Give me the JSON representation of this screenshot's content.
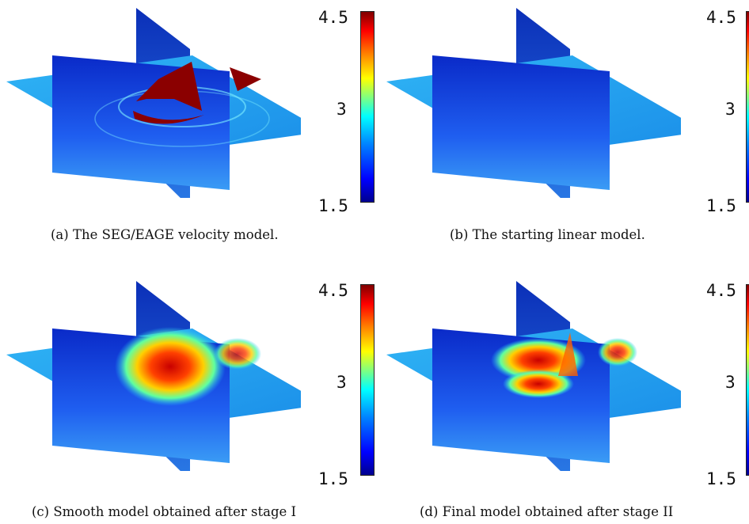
{
  "colorbar": {
    "max": "4.5",
    "mid": "3",
    "min": "1.5"
  },
  "panels": [
    {
      "caption": "(a) The SEG/EAGE velocity model."
    },
    {
      "caption": "(b) The starting linear model."
    },
    {
      "caption": "(c) Smooth model obtained after stage I"
    },
    {
      "caption": "(d) Final model obtained after stage II"
    }
  ]
}
